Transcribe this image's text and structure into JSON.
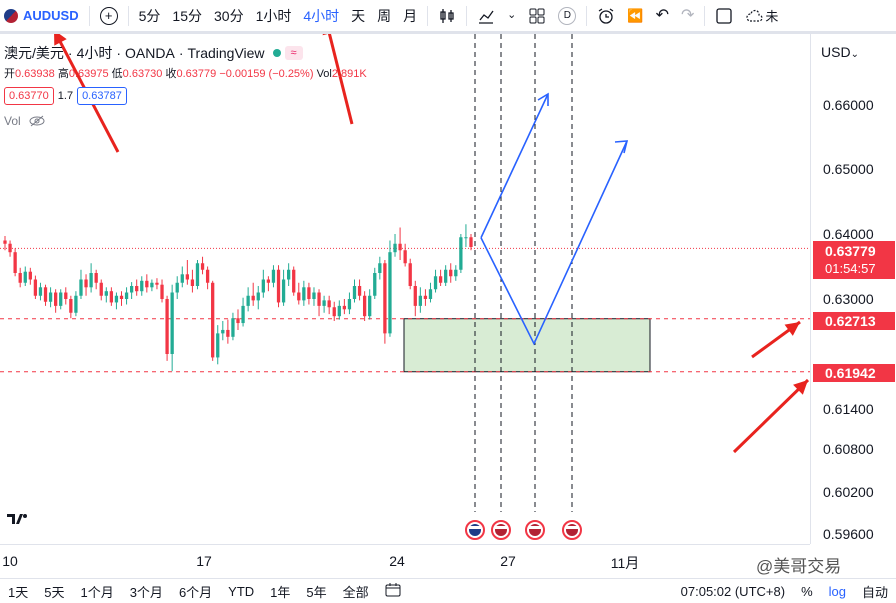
{
  "toolbar": {
    "symbol": "AUDUSD",
    "add_icon": "plus-circle-icon",
    "intervals": [
      "5分",
      "15分",
      "30分",
      "1小时",
      "4小时",
      "天",
      "周",
      "月"
    ],
    "active_interval": "4小时",
    "indicator_letter": "D",
    "cloud_label": "未"
  },
  "legend": {
    "pair": "澳元/美元",
    "interval": "4小时",
    "broker": "OANDA",
    "platform": "TradingView",
    "open_label": "开",
    "open": "0.63938",
    "high_label": "高",
    "high": "0.63975",
    "low_label": "低",
    "low": "0.63730",
    "close_label": "收",
    "close": "0.63779",
    "change": "−0.00159 (−0.25%)",
    "vol_label": "Vol",
    "vol": "2.891K",
    "bid": "0.63770",
    "spread": "1.7",
    "ask": "0.63787",
    "volume_row": "Vol"
  },
  "price_axis": {
    "currency": "USD",
    "ticks": [
      "0.66000",
      "0.65000",
      "0.64000",
      "0.63000",
      "0.61400",
      "0.60800",
      "0.60200",
      "0.59600"
    ],
    "current_price": "0.63779",
    "countdown": "01:54:57",
    "level_upper": "0.62713",
    "level_lower": "0.61942"
  },
  "time_axis": {
    "ticks": [
      "10",
      "17",
      "24",
      "27",
      "11月"
    ]
  },
  "bottom_bar": {
    "ranges": [
      "1天",
      "5天",
      "1个月",
      "3个月",
      "6个月",
      "YTD",
      "1年",
      "5年",
      "全部"
    ],
    "compare_icon": "calendar-range-icon",
    "clock": "07:05:02 (UTC+8)",
    "percent": "%",
    "log": "log",
    "auto": "自动"
  },
  "watermark": "@美哥交易",
  "colors": {
    "up": "#22ab94",
    "down": "#f23645",
    "accent": "#2962ff",
    "annotation_arrow": "#e8231e",
    "zone_fill": "#d8ecd4"
  },
  "chart_data": {
    "type": "candlestick",
    "symbol": "AUDUSD",
    "interval": "4H",
    "y_axis_ticks": [
      0.66,
      0.65,
      0.64,
      0.63,
      0.614,
      0.608,
      0.602,
      0.596
    ],
    "current_price": 0.63779,
    "horizontal_levels": [
      0.62713,
      0.61942
    ],
    "support_zone": {
      "top": 0.62713,
      "bottom": 0.61942
    },
    "x_ticks": [
      "10",
      "17",
      "24",
      "27",
      "11月"
    ],
    "event_flags": [
      "au",
      "us",
      "us",
      "us"
    ],
    "candles": [
      [
        0.639,
        0.6385,
        0.6397,
        0.6375
      ],
      [
        0.6385,
        0.6372,
        0.639,
        0.6365
      ],
      [
        0.6372,
        0.634,
        0.6378,
        0.6335
      ],
      [
        0.634,
        0.6325,
        0.6348,
        0.6318
      ],
      [
        0.6325,
        0.6342,
        0.635,
        0.632
      ],
      [
        0.6342,
        0.633,
        0.6348,
        0.6322
      ],
      [
        0.633,
        0.6305,
        0.6336,
        0.63
      ],
      [
        0.6305,
        0.6318,
        0.6325,
        0.6298
      ],
      [
        0.6318,
        0.6296,
        0.6322,
        0.629
      ],
      [
        0.6296,
        0.631,
        0.6318,
        0.6288
      ],
      [
        0.631,
        0.629,
        0.6315,
        0.628
      ],
      [
        0.629,
        0.631,
        0.6315,
        0.6285
      ],
      [
        0.631,
        0.63,
        0.6318,
        0.6292
      ],
      [
        0.63,
        0.628,
        0.6305,
        0.6272
      ],
      [
        0.628,
        0.6305,
        0.6312,
        0.6275
      ],
      [
        0.6305,
        0.633,
        0.6345,
        0.63
      ],
      [
        0.633,
        0.6318,
        0.6338,
        0.6305
      ],
      [
        0.6318,
        0.634,
        0.6355,
        0.631
      ],
      [
        0.634,
        0.6325,
        0.6345,
        0.6315
      ],
      [
        0.6325,
        0.6305,
        0.633,
        0.6298
      ],
      [
        0.6305,
        0.6312,
        0.6318,
        0.6295
      ],
      [
        0.6312,
        0.6295,
        0.6318,
        0.629
      ],
      [
        0.6295,
        0.6305,
        0.631,
        0.6285
      ],
      [
        0.6305,
        0.63,
        0.6312,
        0.629
      ],
      [
        0.63,
        0.631,
        0.6318,
        0.6292
      ],
      [
        0.631,
        0.632,
        0.6326,
        0.63
      ],
      [
        0.632,
        0.6312,
        0.633,
        0.6305
      ],
      [
        0.6312,
        0.6328,
        0.6335,
        0.6305
      ],
      [
        0.6328,
        0.6318,
        0.6338,
        0.631
      ],
      [
        0.6318,
        0.6325,
        0.633,
        0.6312
      ],
      [
        0.6325,
        0.6322,
        0.6332,
        0.6315
      ],
      [
        0.6322,
        0.63,
        0.633,
        0.6295
      ],
      [
        0.63,
        0.622,
        0.6305,
        0.621
      ],
      [
        0.622,
        0.631,
        0.6322,
        0.6195
      ],
      [
        0.631,
        0.6325,
        0.6335,
        0.63
      ],
      [
        0.6325,
        0.6338,
        0.635,
        0.6318
      ],
      [
        0.6338,
        0.633,
        0.636,
        0.6322
      ],
      [
        0.633,
        0.632,
        0.6345,
        0.631
      ],
      [
        0.632,
        0.6355,
        0.636,
        0.6315
      ],
      [
        0.6355,
        0.6345,
        0.6365,
        0.6338
      ],
      [
        0.6345,
        0.6325,
        0.635,
        0.6315
      ],
      [
        0.6325,
        0.6215,
        0.6328,
        0.621
      ],
      [
        0.6215,
        0.625,
        0.6262,
        0.6205
      ],
      [
        0.625,
        0.6255,
        0.6268,
        0.624
      ],
      [
        0.6255,
        0.6245,
        0.627,
        0.6235
      ],
      [
        0.6245,
        0.6272,
        0.628,
        0.624
      ],
      [
        0.6272,
        0.6265,
        0.6285,
        0.6255
      ],
      [
        0.6265,
        0.629,
        0.6302,
        0.626
      ],
      [
        0.629,
        0.6305,
        0.6318,
        0.6282
      ],
      [
        0.6305,
        0.6298,
        0.6325,
        0.629
      ],
      [
        0.6298,
        0.631,
        0.632,
        0.6285
      ],
      [
        0.631,
        0.633,
        0.6345,
        0.6302
      ],
      [
        0.633,
        0.6325,
        0.6335,
        0.6312
      ],
      [
        0.6325,
        0.6345,
        0.6352,
        0.6318
      ],
      [
        0.6345,
        0.6295,
        0.6352,
        0.6288
      ],
      [
        0.6295,
        0.633,
        0.6345,
        0.629
      ],
      [
        0.633,
        0.6345,
        0.6355,
        0.632
      ],
      [
        0.6345,
        0.631,
        0.635,
        0.6305
      ],
      [
        0.631,
        0.6298,
        0.6325,
        0.6292
      ],
      [
        0.6298,
        0.6318,
        0.6328,
        0.629
      ],
      [
        0.6318,
        0.63,
        0.6325,
        0.6292
      ],
      [
        0.63,
        0.631,
        0.6318,
        0.629
      ],
      [
        0.631,
        0.629,
        0.6315,
        0.6275
      ],
      [
        0.629,
        0.6298,
        0.6305,
        0.628
      ],
      [
        0.6298,
        0.6288,
        0.6305,
        0.6278
      ],
      [
        0.6288,
        0.6275,
        0.6296,
        0.6268
      ],
      [
        0.6275,
        0.629,
        0.6298,
        0.627
      ],
      [
        0.629,
        0.6285,
        0.63,
        0.6278
      ],
      [
        0.6285,
        0.63,
        0.631,
        0.6278
      ],
      [
        0.63,
        0.632,
        0.633,
        0.6295
      ],
      [
        0.632,
        0.6305,
        0.633,
        0.6298
      ],
      [
        0.6305,
        0.6275,
        0.6312,
        0.6268
      ],
      [
        0.6275,
        0.6305,
        0.6315,
        0.627
      ],
      [
        0.6305,
        0.634,
        0.6348,
        0.63
      ],
      [
        0.634,
        0.6355,
        0.6365,
        0.633
      ],
      [
        0.6355,
        0.625,
        0.636,
        0.6235
      ],
      [
        0.625,
        0.6372,
        0.639,
        0.6245
      ],
      [
        0.6372,
        0.6385,
        0.64,
        0.6365
      ],
      [
        0.6385,
        0.6375,
        0.641,
        0.636
      ],
      [
        0.6375,
        0.6355,
        0.6385,
        0.635
      ],
      [
        0.6355,
        0.632,
        0.6362,
        0.6315
      ],
      [
        0.632,
        0.629,
        0.6328,
        0.6275
      ],
      [
        0.629,
        0.6305,
        0.6318,
        0.628
      ],
      [
        0.6305,
        0.63,
        0.6315,
        0.629
      ],
      [
        0.63,
        0.6315,
        0.6325,
        0.6295
      ],
      [
        0.6315,
        0.6335,
        0.6345,
        0.631
      ],
      [
        0.6335,
        0.6325,
        0.6345,
        0.632
      ],
      [
        0.6325,
        0.6345,
        0.6352,
        0.632
      ],
      [
        0.6345,
        0.6335,
        0.6355,
        0.6325
      ],
      [
        0.6335,
        0.6345,
        0.6352,
        0.6328
      ],
      [
        0.6345,
        0.6395,
        0.64,
        0.634
      ],
      [
        0.6395,
        0.6395,
        0.6415,
        0.638
      ],
      [
        0.6395,
        0.638,
        0.64,
        0.6375
      ]
    ]
  }
}
